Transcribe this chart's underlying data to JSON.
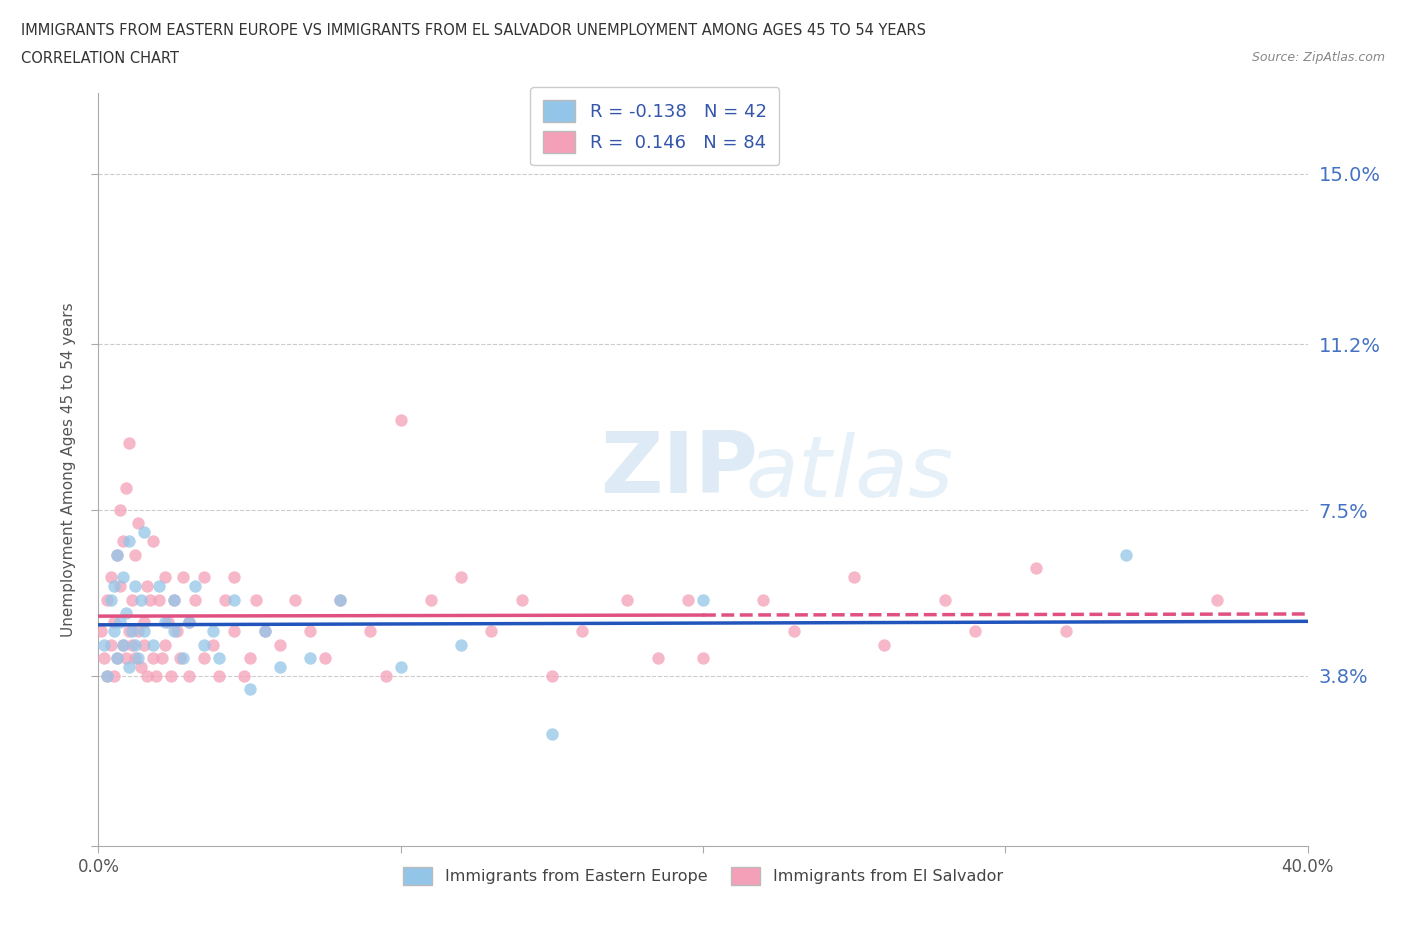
{
  "title_line1": "IMMIGRANTS FROM EASTERN EUROPE VS IMMIGRANTS FROM EL SALVADOR UNEMPLOYMENT AMONG AGES 45 TO 54 YEARS",
  "title_line2": "CORRELATION CHART",
  "source_text": "Source: ZipAtlas.com",
  "ylabel": "Unemployment Among Ages 45 to 54 years",
  "xlim": [
    0.0,
    0.4
  ],
  "ylim": [
    0.0,
    0.168
  ],
  "yticks": [
    0.0,
    0.038,
    0.075,
    0.112,
    0.15
  ],
  "ytick_labels": [
    "",
    "3.8%",
    "7.5%",
    "11.2%",
    "15.0%"
  ],
  "xticks": [
    0.0,
    0.1,
    0.2,
    0.3,
    0.4
  ],
  "xtick_labels": [
    "0.0%",
    "",
    "",
    "",
    "40.0%"
  ],
  "watermark_ZIP": "ZIP",
  "watermark_atlas": "atlas",
  "color_eastern": "#92C5E8",
  "color_salvador": "#F4A0B8",
  "trendline_eastern_color": "#2255BB",
  "trendline_salvador_color": "#E05080",
  "eastern_R": -0.138,
  "eastern_N": 42,
  "salvador_R": 0.146,
  "salvador_N": 84,
  "eastern_scatter_x": [
    0.002,
    0.003,
    0.004,
    0.005,
    0.005,
    0.006,
    0.006,
    0.007,
    0.008,
    0.008,
    0.009,
    0.01,
    0.01,
    0.011,
    0.012,
    0.012,
    0.013,
    0.014,
    0.015,
    0.015,
    0.018,
    0.02,
    0.022,
    0.025,
    0.025,
    0.028,
    0.03,
    0.032,
    0.035,
    0.038,
    0.04,
    0.045,
    0.05,
    0.055,
    0.06,
    0.07,
    0.08,
    0.1,
    0.12,
    0.15,
    0.2,
    0.34
  ],
  "eastern_scatter_y": [
    0.045,
    0.038,
    0.055,
    0.048,
    0.058,
    0.042,
    0.065,
    0.05,
    0.045,
    0.06,
    0.052,
    0.04,
    0.068,
    0.048,
    0.045,
    0.058,
    0.042,
    0.055,
    0.048,
    0.07,
    0.045,
    0.058,
    0.05,
    0.048,
    0.055,
    0.042,
    0.05,
    0.058,
    0.045,
    0.048,
    0.042,
    0.055,
    0.035,
    0.048,
    0.04,
    0.042,
    0.055,
    0.04,
    0.045,
    0.025,
    0.055,
    0.065
  ],
  "salvador_scatter_x": [
    0.001,
    0.002,
    0.003,
    0.003,
    0.004,
    0.004,
    0.005,
    0.005,
    0.006,
    0.006,
    0.007,
    0.007,
    0.008,
    0.008,
    0.009,
    0.009,
    0.01,
    0.01,
    0.011,
    0.011,
    0.012,
    0.012,
    0.013,
    0.013,
    0.014,
    0.015,
    0.015,
    0.016,
    0.016,
    0.017,
    0.018,
    0.018,
    0.019,
    0.02,
    0.021,
    0.022,
    0.022,
    0.023,
    0.024,
    0.025,
    0.026,
    0.027,
    0.028,
    0.03,
    0.03,
    0.032,
    0.035,
    0.035,
    0.038,
    0.04,
    0.042,
    0.045,
    0.045,
    0.048,
    0.05,
    0.052,
    0.055,
    0.06,
    0.065,
    0.07,
    0.075,
    0.08,
    0.09,
    0.095,
    0.1,
    0.11,
    0.12,
    0.13,
    0.14,
    0.15,
    0.16,
    0.175,
    0.185,
    0.195,
    0.2,
    0.22,
    0.23,
    0.25,
    0.26,
    0.28,
    0.29,
    0.31,
    0.32,
    0.37
  ],
  "salvador_scatter_y": [
    0.048,
    0.042,
    0.055,
    0.038,
    0.06,
    0.045,
    0.05,
    0.038,
    0.065,
    0.042,
    0.058,
    0.075,
    0.045,
    0.068,
    0.042,
    0.08,
    0.048,
    0.09,
    0.045,
    0.055,
    0.042,
    0.065,
    0.048,
    0.072,
    0.04,
    0.05,
    0.045,
    0.058,
    0.038,
    0.055,
    0.042,
    0.068,
    0.038,
    0.055,
    0.042,
    0.06,
    0.045,
    0.05,
    0.038,
    0.055,
    0.048,
    0.042,
    0.06,
    0.038,
    0.05,
    0.055,
    0.042,
    0.06,
    0.045,
    0.038,
    0.055,
    0.048,
    0.06,
    0.038,
    0.042,
    0.055,
    0.048,
    0.045,
    0.055,
    0.048,
    0.042,
    0.055,
    0.048,
    0.038,
    0.095,
    0.055,
    0.06,
    0.048,
    0.055,
    0.038,
    0.048,
    0.055,
    0.042,
    0.055,
    0.042,
    0.055,
    0.048,
    0.06,
    0.045,
    0.055,
    0.048,
    0.062,
    0.048,
    0.055
  ]
}
